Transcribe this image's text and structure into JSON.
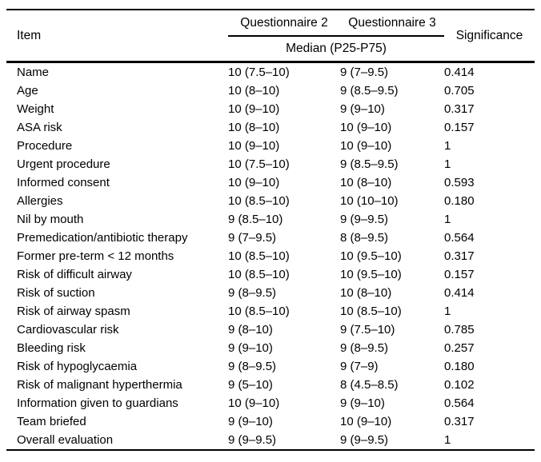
{
  "table": {
    "header": {
      "item": "Item",
      "questionnaire2": "Questionnaire 2",
      "questionnaire3": "Questionnaire 3",
      "subheader": "Median (P25-P75)",
      "significance": "Significance"
    },
    "rows": [
      {
        "item": "Name",
        "q2": "10 (7.5–10)",
        "q3": "9 (7–9.5)",
        "significance": "0.414"
      },
      {
        "item": "Age",
        "q2": "10 (8–10)",
        "q3": "9 (8.5–9.5)",
        "significance": "0.705"
      },
      {
        "item": "Weight",
        "q2": "10 (9–10)",
        "q3": "9 (9–10)",
        "significance": "0.317"
      },
      {
        "item": "ASA risk",
        "q2": "10 (8–10)",
        "q3": "10 (9–10)",
        "significance": "0.157"
      },
      {
        "item": "Procedure",
        "q2": "10 (9–10)",
        "q3": "10 (9–10)",
        "significance": "1"
      },
      {
        "item": "Urgent procedure",
        "q2": "10 (7.5–10)",
        "q3": "9 (8.5–9.5)",
        "significance": "1"
      },
      {
        "item": "Informed consent",
        "q2": "10 (9–10)",
        "q3": "10 (8–10)",
        "significance": "0.593"
      },
      {
        "item": "Allergies",
        "q2": "10 (8.5–10)",
        "q3": "10 (10–10)",
        "significance": "0.180"
      },
      {
        "item": "Nil by mouth",
        "q2": "9 (8.5–10)",
        "q3": "9 (9–9.5)",
        "significance": "1"
      },
      {
        "item": "Premedication/antibiotic therapy",
        "q2": "9 (7–9.5)",
        "q3": "8 (8–9.5)",
        "significance": "0.564"
      },
      {
        "item": "Former pre-term < 12 months",
        "q2": "10 (8.5–10)",
        "q3": "10 (9.5–10)",
        "significance": "0.317"
      },
      {
        "item": "Risk of difficult airway",
        "q2": "10 (8.5–10)",
        "q3": "10 (9.5–10)",
        "significance": "0.157"
      },
      {
        "item": "Risk of suction",
        "q2": "9 (8–9.5)",
        "q3": "10 (8–10)",
        "significance": "0.414"
      },
      {
        "item": "Risk of airway spasm",
        "q2": "10 (8.5–10)",
        "q3": "10 (8.5–10)",
        "significance": "1"
      },
      {
        "item": "Cardiovascular risk",
        "q2": "9 (8–10)",
        "q3": "9 (7.5–10)",
        "significance": "0.785"
      },
      {
        "item": "Bleeding risk",
        "q2": "9 (9–10)",
        "q3": "9 (8–9.5)",
        "significance": "0.257"
      },
      {
        "item": "Risk of hypoglycaemia",
        "q2": "9 (8–9.5)",
        "q3": "9 (7–9)",
        "significance": "0.180"
      },
      {
        "item": "Risk of malignant hyperthermia",
        "q2": "9 (5–10)",
        "q3": "8 (4.5–8.5)",
        "significance": "0.102"
      },
      {
        "item": "Information given to guardians",
        "q2": "10 (9–10)",
        "q3": "9 (9–10)",
        "significance": "0.564"
      },
      {
        "item": "Team briefed",
        "q2": "9 (9–10)",
        "q3": "10 (9–10)",
        "significance": "0.317"
      },
      {
        "item": "Overall evaluation",
        "q2": "9 (9–9.5)",
        "q3": "9 (9–9.5)",
        "significance": "1"
      }
    ]
  },
  "chart_data": {
    "type": "table",
    "title": "",
    "columns": [
      "Item",
      "Questionnaire 2 — Median (P25-P75)",
      "Questionnaire 3 — Median (P25-P75)",
      "Significance"
    ],
    "rows": [
      [
        "Name",
        "10 (7.5–10)",
        "9 (7–9.5)",
        "0.414"
      ],
      [
        "Age",
        "10 (8–10)",
        "9 (8.5–9.5)",
        "0.705"
      ],
      [
        "Weight",
        "10 (9–10)",
        "9 (9–10)",
        "0.317"
      ],
      [
        "ASA risk",
        "10 (8–10)",
        "10 (9–10)",
        "0.157"
      ],
      [
        "Procedure",
        "10 (9–10)",
        "10 (9–10)",
        "1"
      ],
      [
        "Urgent procedure",
        "10 (7.5–10)",
        "9 (8.5–9.5)",
        "1"
      ],
      [
        "Informed consent",
        "10 (9–10)",
        "10 (8–10)",
        "0.593"
      ],
      [
        "Allergies",
        "10 (8.5–10)",
        "10 (10–10)",
        "0.180"
      ],
      [
        "Nil by mouth",
        "9 (8.5–10)",
        "9 (9–9.5)",
        "1"
      ],
      [
        "Premedication/antibiotic therapy",
        "9 (7–9.5)",
        "8 (8–9.5)",
        "0.564"
      ],
      [
        "Former pre-term < 12 months",
        "10 (8.5–10)",
        "10 (9.5–10)",
        "0.317"
      ],
      [
        "Risk of difficult airway",
        "10 (8.5–10)",
        "10 (9.5–10)",
        "0.157"
      ],
      [
        "Risk of suction",
        "9 (8–9.5)",
        "10 (8–10)",
        "0.414"
      ],
      [
        "Risk of airway spasm",
        "10 (8.5–10)",
        "10 (8.5–10)",
        "1"
      ],
      [
        "Cardiovascular risk",
        "9 (8–10)",
        "9 (7.5–10)",
        "0.785"
      ],
      [
        "Bleeding risk",
        "9 (9–10)",
        "9 (8–9.5)",
        "0.257"
      ],
      [
        "Risk of hypoglycaemia",
        "9 (8–9.5)",
        "9 (7–9)",
        "0.180"
      ],
      [
        "Risk of malignant hyperthermia",
        "9 (5–10)",
        "8 (4.5–8.5)",
        "0.102"
      ],
      [
        "Information given to guardians",
        "10 (9–10)",
        "9 (9–10)",
        "0.564"
      ],
      [
        "Team briefed",
        "9 (9–10)",
        "10 (9–10)",
        "0.317"
      ],
      [
        "Overall evaluation",
        "9 (9–9.5)",
        "9 (9–9.5)",
        "1"
      ]
    ]
  }
}
